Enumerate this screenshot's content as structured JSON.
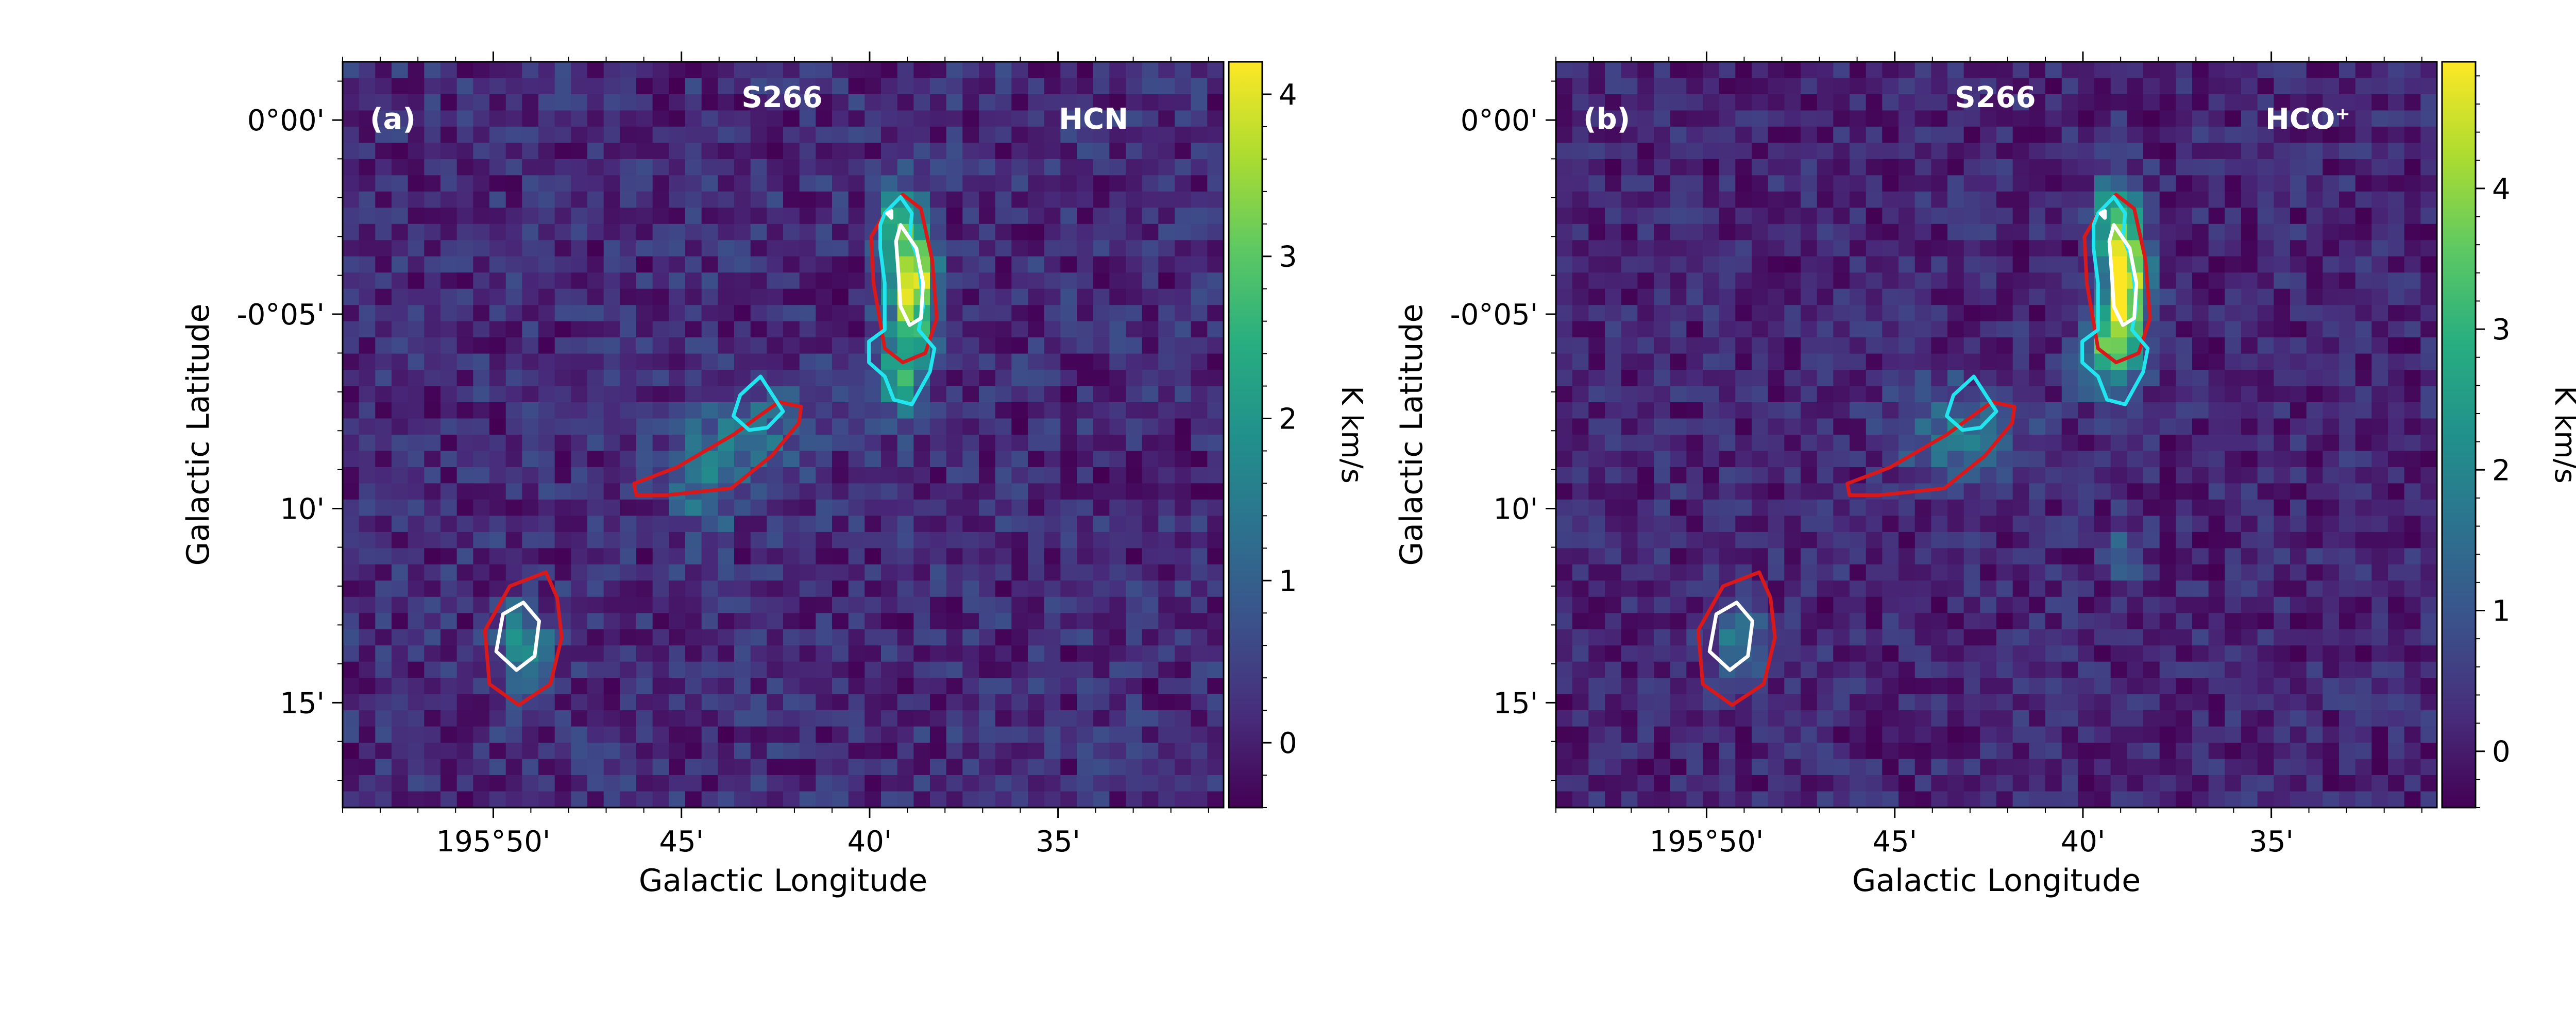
{
  "colors": {
    "contour_red": "#d7191c",
    "contour_cyan": "#22e5f0",
    "contour_white": "#ffffff",
    "colormap": "viridis"
  },
  "chart_data": [
    {
      "type": "heatmap",
      "panel_label": "(a)",
      "source_label": "S266",
      "line_label": "HCN",
      "xlabel": "Galactic Longitude",
      "ylabel": "Galactic Latitude",
      "x_unit": "arcmin offset, Galactic longitude",
      "y_unit": "arcmin offset, Galactic latitude",
      "x_ticks": [
        {
          "v": 195.8333,
          "label": "195°50'"
        },
        {
          "v": 195.75,
          "label": "45'"
        },
        {
          "v": 195.6667,
          "label": "40'"
        },
        {
          "v": 195.5833,
          "label": "35'"
        }
      ],
      "y_ticks": [
        {
          "v": 0.0,
          "label": "0°00'"
        },
        {
          "v": -0.0833,
          "label": "-0°05'"
        },
        {
          "v": -0.1667,
          "label": "10'"
        },
        {
          "v": -0.25,
          "label": "15'"
        }
      ],
      "xlim": [
        195.9,
        195.51
      ],
      "ylim": [
        -0.295,
        0.025
      ],
      "colorbar": {
        "label": "K km/s",
        "vmin": -0.4,
        "vmax": 4.2,
        "ticks": [
          {
            "v": 0,
            "label": "0"
          },
          {
            "v": 1,
            "label": "1"
          },
          {
            "v": 2,
            "label": "2"
          },
          {
            "v": 3,
            "label": "3"
          },
          {
            "v": 4,
            "label": "4"
          }
        ]
      },
      "emission_peaks": [
        {
          "l": 195.648,
          "b": -0.07,
          "peak": 4.2,
          "sigma_l": 0.007,
          "sigma_b": 0.018
        },
        {
          "l": 195.655,
          "b": -0.04,
          "peak": 1.8,
          "sigma_l": 0.006,
          "sigma_b": 0.01
        },
        {
          "l": 195.652,
          "b": -0.11,
          "peak": 2.0,
          "sigma_l": 0.008,
          "sigma_b": 0.012
        },
        {
          "l": 195.82,
          "b": -0.225,
          "peak": 1.8,
          "sigma_l": 0.008,
          "sigma_b": 0.012
        },
        {
          "l": 195.72,
          "b": -0.135,
          "peak": 1.1,
          "sigma_l": 0.02,
          "sigma_b": 0.015
        },
        {
          "l": 195.74,
          "b": -0.16,
          "peak": 1.0,
          "sigma_l": 0.01,
          "sigma_b": 0.015
        }
      ],
      "contours": {
        "red": [
          [
            [
              195.66,
              -0.04
            ],
            [
              195.652,
              -0.032
            ],
            [
              195.644,
              -0.038
            ],
            [
              195.639,
              -0.06
            ],
            [
              195.637,
              -0.085
            ],
            [
              195.642,
              -0.1
            ],
            [
              195.652,
              -0.104
            ],
            [
              195.66,
              -0.098
            ],
            [
              195.665,
              -0.07
            ],
            [
              195.666,
              -0.05
            ]
          ],
          [
            [
              195.697,
              -0.123
            ],
            [
              195.707,
              -0.121
            ],
            [
              195.727,
              -0.135
            ],
            [
              195.752,
              -0.149
            ],
            [
              195.771,
              -0.156
            ],
            [
              195.77,
              -0.161
            ],
            [
              195.757,
              -0.161
            ],
            [
              195.728,
              -0.158
            ],
            [
              195.71,
              -0.144
            ],
            [
              195.698,
              -0.13
            ]
          ],
          [
            [
              195.81,
              -0.194
            ],
            [
              195.826,
              -0.2
            ],
            [
              195.837,
              -0.219
            ],
            [
              195.835,
              -0.242
            ],
            [
              195.822,
              -0.251
            ],
            [
              195.808,
              -0.242
            ],
            [
              195.803,
              -0.222
            ],
            [
              195.805,
              -0.205
            ]
          ]
        ],
        "cyan": [
          [
            [
              195.66,
              -0.04
            ],
            [
              195.653,
              -0.033
            ],
            [
              195.648,
              -0.04
            ],
            [
              195.649,
              -0.05
            ],
            [
              195.645,
              -0.06
            ],
            [
              195.643,
              -0.08
            ],
            [
              195.645,
              -0.09
            ],
            [
              195.638,
              -0.098
            ],
            [
              195.64,
              -0.108
            ],
            [
              195.648,
              -0.122
            ],
            [
              195.656,
              -0.12
            ],
            [
              195.66,
              -0.11
            ],
            [
              195.667,
              -0.104
            ],
            [
              195.667,
              -0.095
            ],
            [
              195.66,
              -0.09
            ],
            [
              195.66,
              -0.07
            ],
            [
              195.662,
              -0.055
            ],
            [
              195.662,
              -0.045
            ]
          ],
          [
            [
              195.715,
              -0.11
            ],
            [
              195.705,
              -0.125
            ],
            [
              195.712,
              -0.132
            ],
            [
              195.72,
              -0.133
            ],
            [
              195.727,
              -0.127
            ],
            [
              195.724,
              -0.118
            ]
          ]
        ],
        "white": [
          [
            [
              195.653,
              -0.045
            ],
            [
              195.646,
              -0.055
            ],
            [
              195.643,
              -0.07
            ],
            [
              195.644,
              -0.085
            ],
            [
              195.649,
              -0.088
            ],
            [
              195.653,
              -0.08
            ],
            [
              195.654,
              -0.065
            ],
            [
              195.655,
              -0.052
            ]
          ],
          [
            [
              195.82,
              -0.207
            ],
            [
              195.829,
              -0.212
            ],
            [
              195.832,
              -0.228
            ],
            [
              195.823,
              -0.236
            ],
            [
              195.815,
              -0.23
            ],
            [
              195.813,
              -0.215
            ]
          ],
          [
            [
              195.659,
              -0.04
            ],
            [
              195.657,
              -0.039
            ],
            [
              195.657,
              -0.042
            ]
          ]
        ]
      }
    },
    {
      "type": "heatmap",
      "panel_label": "(b)",
      "source_label": "S266",
      "line_label": "HCO⁺",
      "xlabel": "Galactic Longitude",
      "ylabel": "Galactic Latitude",
      "x_unit": "arcmin offset, Galactic longitude",
      "y_unit": "arcmin offset, Galactic latitude",
      "x_ticks": [
        {
          "v": 195.8333,
          "label": "195°50'"
        },
        {
          "v": 195.75,
          "label": "45'"
        },
        {
          "v": 195.6667,
          "label": "40'"
        },
        {
          "v": 195.5833,
          "label": "35'"
        }
      ],
      "y_ticks": [
        {
          "v": 0.0,
          "label": "0°00'"
        },
        {
          "v": -0.0833,
          "label": "-0°05'"
        },
        {
          "v": -0.1667,
          "label": "10'"
        },
        {
          "v": -0.25,
          "label": "15'"
        }
      ],
      "xlim": [
        195.9,
        195.51
      ],
      "ylim": [
        -0.295,
        0.025
      ],
      "colorbar": {
        "label": "K km/s",
        "vmin": -0.4,
        "vmax": 4.9,
        "ticks": [
          {
            "v": 0,
            "label": "0"
          },
          {
            "v": 1,
            "label": "1"
          },
          {
            "v": 2,
            "label": "2"
          },
          {
            "v": 3,
            "label": "3"
          },
          {
            "v": 4,
            "label": "4"
          }
        ]
      },
      "emission_peaks": [
        {
          "l": 195.648,
          "b": -0.068,
          "peak": 4.9,
          "sigma_l": 0.007,
          "sigma_b": 0.02
        },
        {
          "l": 195.655,
          "b": -0.04,
          "peak": 2.2,
          "sigma_l": 0.006,
          "sigma_b": 0.01
        },
        {
          "l": 195.655,
          "b": -0.1,
          "peak": 2.8,
          "sigma_l": 0.009,
          "sigma_b": 0.012
        },
        {
          "l": 195.82,
          "b": -0.225,
          "peak": 1.7,
          "sigma_l": 0.008,
          "sigma_b": 0.012
        },
        {
          "l": 195.72,
          "b": -0.135,
          "peak": 1.5,
          "sigma_l": 0.02,
          "sigma_b": 0.015
        },
        {
          "l": 195.65,
          "b": -0.185,
          "peak": 1.3,
          "sigma_l": 0.006,
          "sigma_b": 0.008
        }
      ],
      "contours": {
        "red": [
          [
            [
              195.66,
              -0.04
            ],
            [
              195.652,
              -0.032
            ],
            [
              195.644,
              -0.038
            ],
            [
              195.639,
              -0.06
            ],
            [
              195.637,
              -0.085
            ],
            [
              195.642,
              -0.1
            ],
            [
              195.652,
              -0.104
            ],
            [
              195.66,
              -0.098
            ],
            [
              195.665,
              -0.07
            ],
            [
              195.666,
              -0.05
            ]
          ],
          [
            [
              195.697,
              -0.123
            ],
            [
              195.707,
              -0.121
            ],
            [
              195.727,
              -0.135
            ],
            [
              195.752,
              -0.149
            ],
            [
              195.771,
              -0.156
            ],
            [
              195.77,
              -0.161
            ],
            [
              195.757,
              -0.161
            ],
            [
              195.728,
              -0.158
            ],
            [
              195.71,
              -0.144
            ],
            [
              195.698,
              -0.13
            ]
          ],
          [
            [
              195.81,
              -0.194
            ],
            [
              195.826,
              -0.2
            ],
            [
              195.837,
              -0.219
            ],
            [
              195.835,
              -0.242
            ],
            [
              195.822,
              -0.251
            ],
            [
              195.808,
              -0.242
            ],
            [
              195.803,
              -0.222
            ],
            [
              195.805,
              -0.205
            ]
          ]
        ],
        "cyan": [
          [
            [
              195.66,
              -0.04
            ],
            [
              195.653,
              -0.033
            ],
            [
              195.648,
              -0.04
            ],
            [
              195.649,
              -0.05
            ],
            [
              195.645,
              -0.06
            ],
            [
              195.643,
              -0.08
            ],
            [
              195.645,
              -0.09
            ],
            [
              195.638,
              -0.098
            ],
            [
              195.64,
              -0.108
            ],
            [
              195.648,
              -0.122
            ],
            [
              195.656,
              -0.12
            ],
            [
              195.66,
              -0.11
            ],
            [
              195.667,
              -0.104
            ],
            [
              195.667,
              -0.095
            ],
            [
              195.66,
              -0.09
            ],
            [
              195.66,
              -0.07
            ],
            [
              195.662,
              -0.055
            ],
            [
              195.662,
              -0.045
            ]
          ],
          [
            [
              195.715,
              -0.11
            ],
            [
              195.705,
              -0.125
            ],
            [
              195.712,
              -0.132
            ],
            [
              195.72,
              -0.133
            ],
            [
              195.727,
              -0.127
            ],
            [
              195.724,
              -0.118
            ]
          ]
        ],
        "white": [
          [
            [
              195.653,
              -0.045
            ],
            [
              195.646,
              -0.055
            ],
            [
              195.643,
              -0.07
            ],
            [
              195.644,
              -0.085
            ],
            [
              195.649,
              -0.088
            ],
            [
              195.653,
              -0.08
            ],
            [
              195.654,
              -0.065
            ],
            [
              195.655,
              -0.052
            ]
          ],
          [
            [
              195.82,
              -0.207
            ],
            [
              195.829,
              -0.212
            ],
            [
              195.832,
              -0.228
            ],
            [
              195.823,
              -0.236
            ],
            [
              195.815,
              -0.23
            ],
            [
              195.813,
              -0.215
            ]
          ],
          [
            [
              195.659,
              -0.04
            ],
            [
              195.657,
              -0.039
            ],
            [
              195.657,
              -0.042
            ]
          ]
        ]
      }
    }
  ]
}
